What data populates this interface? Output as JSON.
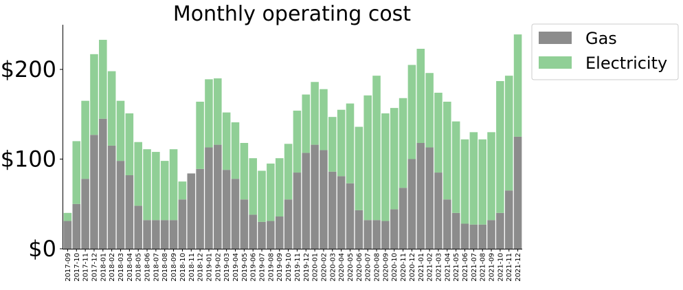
{
  "chart_data": {
    "type": "bar",
    "stacked": true,
    "title": "Monthly operating cost",
    "xlabel": "",
    "ylabel": "",
    "ylim": [
      0,
      250
    ],
    "yticks": [
      0,
      100,
      200
    ],
    "ytick_labels": [
      "$0",
      "$100",
      "$200"
    ],
    "legend_position": "outside-top-right",
    "categories": [
      "2017-09",
      "2017-10",
      "2017-11",
      "2017-12",
      "2018-01",
      "2018-02",
      "2018-03",
      "2018-04",
      "2018-05",
      "2018-06",
      "2018-07",
      "2018-08",
      "2018-09",
      "2018-10",
      "2018-11",
      "2018-12",
      "2019-01",
      "2019-02",
      "2019-03",
      "2019-04",
      "2019-05",
      "2019-06",
      "2019-07",
      "2019-08",
      "2019-09",
      "2019-10",
      "2019-11",
      "2019-12",
      "2020-01",
      "2020-02",
      "2020-03",
      "2020-04",
      "2020-05",
      "2020-06",
      "2020-07",
      "2020-08",
      "2020-09",
      "2020-10",
      "2020-11",
      "2020-12",
      "2021-01",
      "2021-02",
      "2021-03",
      "2021-04",
      "2021-05",
      "2021-06",
      "2021-07",
      "2021-08",
      "2021-09",
      "2021-10",
      "2021-11",
      "2021-12"
    ],
    "series": [
      {
        "name": "Gas",
        "color": "#8c8c8c",
        "values": [
          31,
          50,
          78,
          127,
          145,
          115,
          98,
          82,
          48,
          32,
          32,
          32,
          32,
          55,
          84,
          89,
          113,
          116,
          88,
          78,
          55,
          38,
          30,
          31,
          36,
          55,
          85,
          107,
          116,
          110,
          86,
          81,
          73,
          43,
          32,
          32,
          31,
          44,
          68,
          100,
          118,
          113,
          85,
          55,
          40,
          28,
          27,
          27,
          32,
          40,
          65,
          125
        ]
      },
      {
        "name": "Electricity",
        "color": "#90cf96",
        "values": [
          9,
          70,
          87,
          90,
          88,
          83,
          67,
          69,
          71,
          79,
          76,
          66,
          79,
          20,
          0,
          75,
          76,
          74,
          64,
          63,
          63,
          63,
          57,
          64,
          65,
          62,
          69,
          65,
          70,
          68,
          61,
          74,
          89,
          93,
          139,
          161,
          120,
          113,
          100,
          105,
          105,
          83,
          89,
          109,
          102,
          94,
          103,
          95,
          98,
          147,
          128,
          114
        ]
      }
    ]
  }
}
